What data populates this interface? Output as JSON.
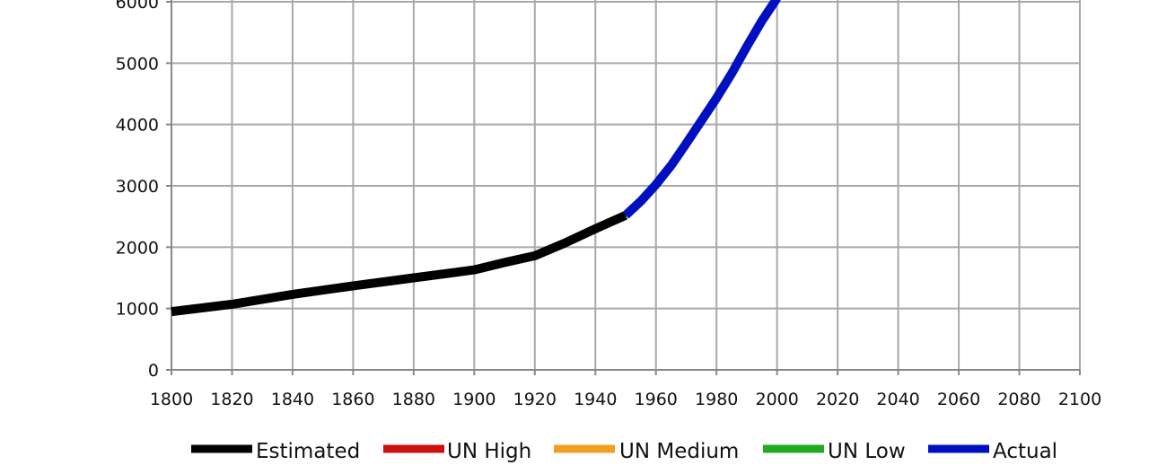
{
  "chart_data": {
    "type": "line",
    "title": "",
    "xlabel": "",
    "ylabel": "",
    "xlim": [
      1800,
      2100
    ],
    "ylim": [
      0,
      6000
    ],
    "grid": true,
    "x_ticks": [
      "1800",
      "1820",
      "1840",
      "1860",
      "1880",
      "1900",
      "1920",
      "1940",
      "1960",
      "1980",
      "2000",
      "2020",
      "2040",
      "2060",
      "2080",
      "2100"
    ],
    "y_ticks": [
      "0",
      "1000",
      "2000",
      "3000",
      "4000",
      "5000",
      "6000"
    ],
    "legend_position": "bottom",
    "series": [
      {
        "name": "Estimated",
        "color": "#000000",
        "x": [
          1800,
          1820,
          1840,
          1860,
          1880,
          1900,
          1910,
          1920,
          1930,
          1940,
          1950
        ],
        "y": [
          950,
          1070,
          1230,
          1370,
          1500,
          1630,
          1750,
          1860,
          2070,
          2300,
          2520
        ]
      },
      {
        "name": "UN High",
        "color": "#cc1111",
        "x": [],
        "y": []
      },
      {
        "name": "UN Medium",
        "color": "#f0a020",
        "x": [],
        "y": []
      },
      {
        "name": "UN Low",
        "color": "#22aa22",
        "x": [],
        "y": []
      },
      {
        "name": "Actual",
        "color": "#0010c0",
        "x": [
          1950,
          1955,
          1960,
          1965,
          1970,
          1975,
          1980,
          1985,
          1990,
          1995,
          2000
        ],
        "y": [
          2520,
          2750,
          3020,
          3330,
          3690,
          4060,
          4430,
          4830,
          5270,
          5690,
          6060
        ]
      }
    ]
  }
}
